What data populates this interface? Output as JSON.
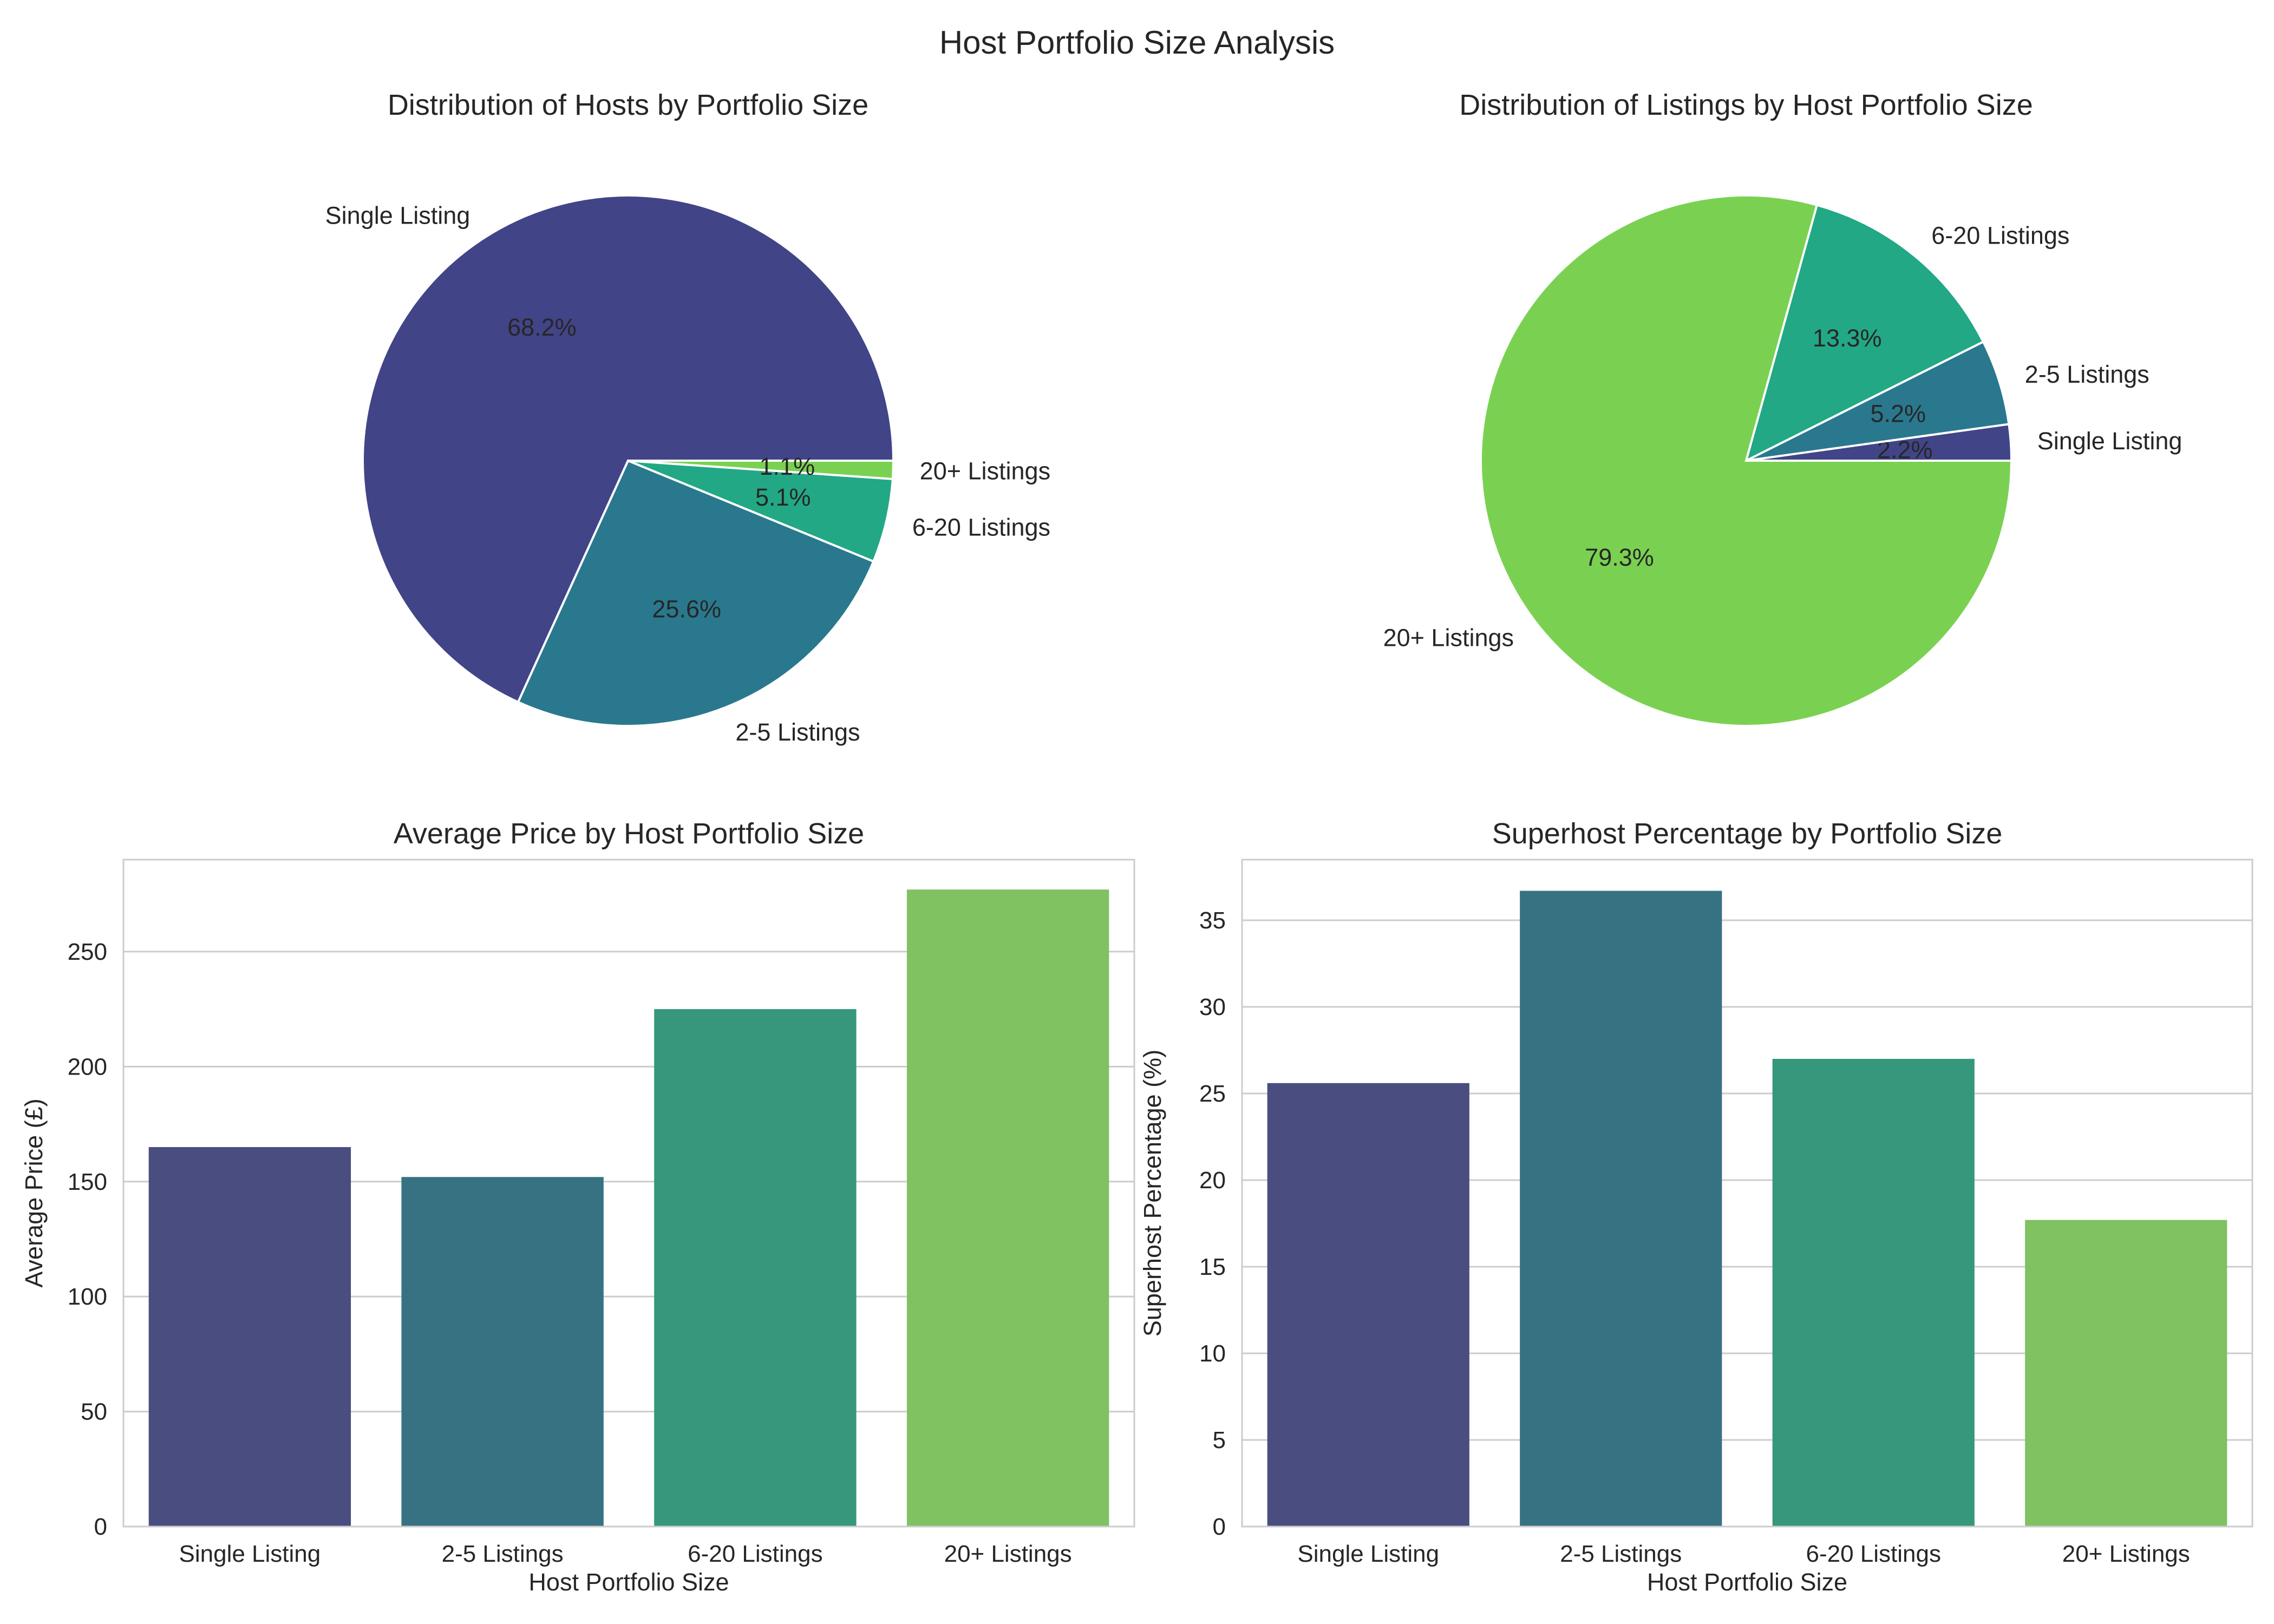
{
  "suptitle": "Host Portfolio Size Analysis",
  "colors": {
    "single": "#414487",
    "two_five": "#2a788e",
    "six_twenty": "#22a884",
    "twenty_plus": "#7ad151",
    "bar_single": "#4a4d7f",
    "bar_two_five": "#377282",
    "bar_six_twenty": "#36977d",
    "bar_twenty_plus": "#80c162",
    "grid": "#cccccc",
    "frame": "#cccccc"
  },
  "chart_data": [
    {
      "type": "pie",
      "title": "Distribution of Hosts by Portfolio Size",
      "labels": [
        "Single Listing",
        "2-5 Listings",
        "6-20 Listings",
        "20+ Listings"
      ],
      "values": [
        68.2,
        25.6,
        5.1,
        1.1
      ],
      "pct_labels": [
        "68.2%",
        "25.6%",
        "5.1%",
        "1.1%"
      ],
      "colors": [
        "#414487",
        "#2a788e",
        "#22a884",
        "#7ad151"
      ]
    },
    {
      "type": "pie",
      "title": "Distribution of Listings by Host Portfolio Size",
      "labels": [
        "Single Listing",
        "2-5 Listings",
        "6-20 Listings",
        "20+ Listings"
      ],
      "values": [
        2.2,
        5.2,
        13.3,
        79.3
      ],
      "pct_labels": [
        "2.2%",
        "5.2%",
        "13.3%",
        "79.3%"
      ],
      "colors": [
        "#414487",
        "#2a788e",
        "#22a884",
        "#7ad151"
      ]
    },
    {
      "type": "bar",
      "title": "Average Price by Host Portfolio Size",
      "categories": [
        "Single Listing",
        "2-5 Listings",
        "6-20 Listings",
        "20+ Listings"
      ],
      "values": [
        165,
        152,
        225,
        277
      ],
      "xlabel": "Host Portfolio Size",
      "ylabel": "Average Price (£)",
      "ylim": [
        0,
        290
      ],
      "yticks": [
        0,
        50,
        100,
        150,
        200,
        250
      ],
      "grid": true,
      "colors": [
        "#4a4d7f",
        "#377282",
        "#36977d",
        "#80c162"
      ]
    },
    {
      "type": "bar",
      "title": "Superhost Percentage by Portfolio Size",
      "categories": [
        "Single Listing",
        "2-5 Listings",
        "6-20 Listings",
        "20+ Listings"
      ],
      "values": [
        25.6,
        36.7,
        27.0,
        17.7
      ],
      "xlabel": "Host Portfolio Size",
      "ylabel": "Superhost Percentage (%)",
      "ylim": [
        0,
        38.5
      ],
      "yticks": [
        0,
        5,
        10,
        15,
        20,
        25,
        30,
        35
      ],
      "grid": true,
      "colors": [
        "#4a4d7f",
        "#377282",
        "#36977d",
        "#80c162"
      ]
    }
  ]
}
